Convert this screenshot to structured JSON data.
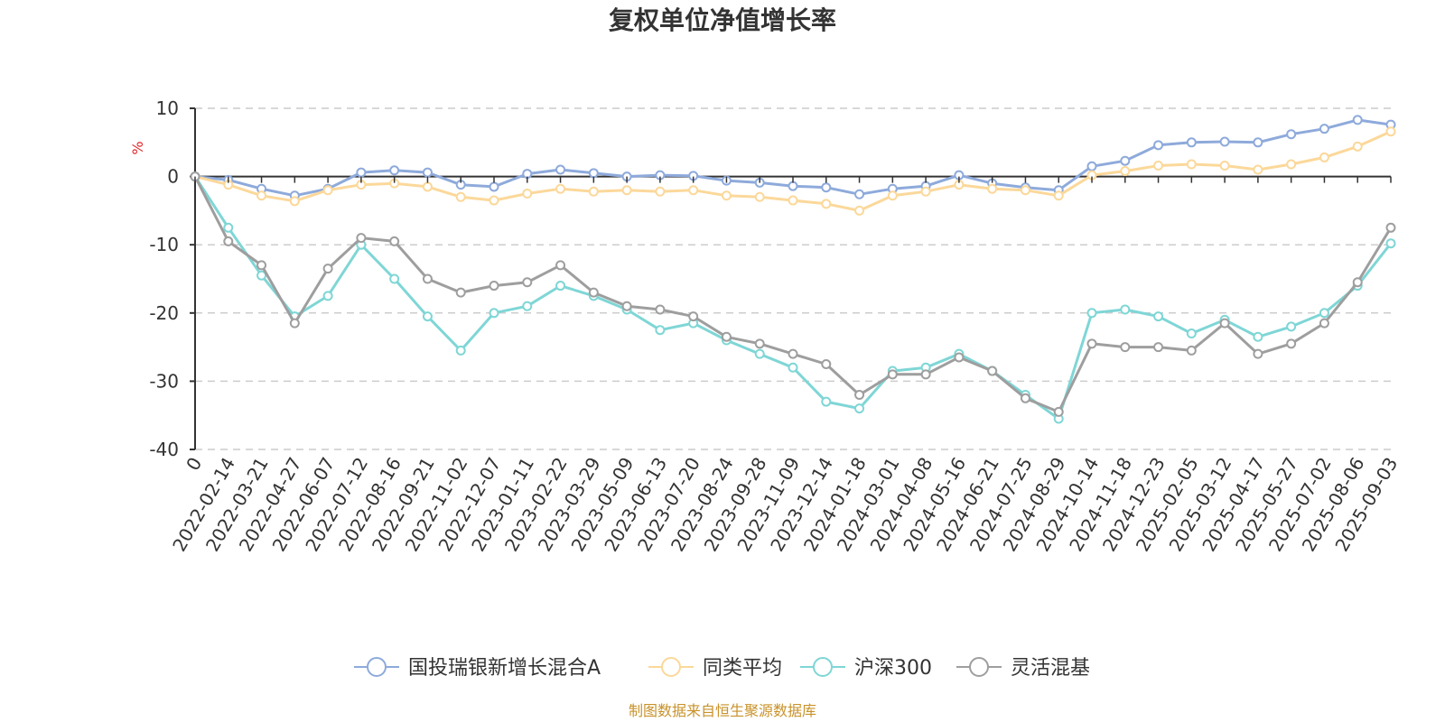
{
  "chart_data": {
    "type": "line",
    "title": "复权单位净值增长率",
    "ylabel": "%",
    "ylim": [
      -40,
      10
    ],
    "yticks": [
      10,
      0,
      -10,
      -20,
      -30,
      -40
    ],
    "grid": true,
    "legend_position": "bottom",
    "x_ticks": [
      "0",
      "2022-02-14",
      "2022-03-21",
      "2022-04-27",
      "2022-06-07",
      "2022-07-12",
      "2022-08-16",
      "2022-09-21",
      "2022-11-02",
      "2022-12-07",
      "2023-01-11",
      "2023-02-22",
      "2023-03-29",
      "2023-05-09",
      "2023-06-13",
      "2023-07-20",
      "2023-08-24",
      "2023-09-28",
      "2023-11-09",
      "2023-12-14",
      "2024-01-18",
      "2024-03-01",
      "2024-04-08",
      "2024-05-16",
      "2024-06-21",
      "2024-07-25",
      "2024-08-29",
      "2024-10-14",
      "2024-11-18",
      "2024-12-23",
      "2025-02-05",
      "2025-03-12",
      "2025-04-17",
      "2025-05-27",
      "2025-07-02",
      "2025-08-06",
      "2025-09-03"
    ],
    "series": [
      {
        "name": "国投瑞银新增长混合A",
        "color": "#8eaadb",
        "values": [
          0,
          -0.5,
          -1.8,
          -2.8,
          -1.8,
          0.6,
          0.9,
          0.6,
          -1.2,
          -1.5,
          0.4,
          1.0,
          0.5,
          0.0,
          0.2,
          0.1,
          -0.6,
          -0.9,
          -1.4,
          -1.6,
          -2.6,
          -1.8,
          -1.4,
          0.2,
          -1.0,
          -1.6,
          -2.0,
          1.5,
          2.3,
          4.6,
          5.0,
          5.1,
          5.0,
          6.2,
          7.0,
          8.3,
          7.6
        ]
      },
      {
        "name": "同类平均",
        "color": "#fbd89a",
        "values": [
          0,
          -1.2,
          -2.8,
          -3.6,
          -2.0,
          -1.2,
          -1.0,
          -1.5,
          -3.0,
          -3.5,
          -2.5,
          -1.8,
          -2.2,
          -2.0,
          -2.2,
          -2.0,
          -2.8,
          -3.0,
          -3.5,
          -4.0,
          -5.0,
          -2.8,
          -2.2,
          -1.2,
          -1.8,
          -2.0,
          -2.8,
          0.2,
          0.8,
          1.6,
          1.8,
          1.6,
          1.0,
          1.8,
          2.8,
          4.4,
          6.6
        ]
      },
      {
        "name": "沪深300",
        "color": "#7fd6d6",
        "values": [
          0,
          -7.5,
          -14.5,
          -20.5,
          -17.5,
          -10.0,
          -15.0,
          -20.5,
          -25.5,
          -20.0,
          -19.0,
          -16.0,
          -17.5,
          -19.5,
          -22.5,
          -21.5,
          -24.0,
          -26.0,
          -28.0,
          -33.0,
          -34.0,
          -28.5,
          -28.0,
          -26.0,
          -28.5,
          -32.0,
          -35.5,
          -20.0,
          -19.5,
          -20.5,
          -23.0,
          -21.0,
          -23.5,
          -22.0,
          -20.0,
          -16.0,
          -9.8
        ]
      },
      {
        "name": "灵活混基",
        "color": "#9e9e9e",
        "values": [
          0,
          -9.5,
          -13.0,
          -21.5,
          -13.5,
          -9.0,
          -9.5,
          -15.0,
          -17.0,
          -16.0,
          -15.5,
          -13.0,
          -17.0,
          -19.0,
          -19.5,
          -20.5,
          -23.5,
          -24.5,
          -26.0,
          -27.5,
          -32.0,
          -29.0,
          -29.0,
          -26.5,
          -28.5,
          -32.5,
          -34.5,
          -24.5,
          -25.0,
          -25.0,
          -25.5,
          -21.5,
          -26.0,
          -24.5,
          -21.5,
          -15.5,
          -7.5
        ]
      }
    ]
  },
  "footer": {
    "source": "制图数据来自恒生聚源数据库"
  }
}
